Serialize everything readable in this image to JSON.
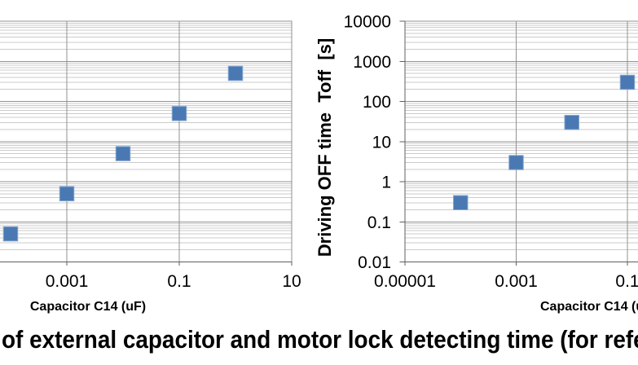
{
  "caption": {
    "text": "of external capacitor and motor lock detecting time (for refe"
  },
  "colors": {
    "background": "#ffffff",
    "marker_fill": "#4a78b2",
    "marker_edge": "#84a7d1",
    "grid_major": "#929292",
    "grid_minor": "#cbcbcb",
    "axis": "#5f5f5f",
    "text": "#000000"
  },
  "chart_data": [
    {
      "id": "left-chart",
      "type": "scatter",
      "title": "",
      "xlabel": "Capacitor C14 (uF)",
      "ylabel": "",
      "x_scale": "log",
      "y_scale": "log",
      "grid": true,
      "legend": false,
      "x_tick_labels": [
        "0.001",
        "0.1",
        "10"
      ],
      "y_tick_labels": [],
      "y_range": [
        0.01,
        10000
      ],
      "x": [
        0.0001,
        0.001,
        0.01,
        0.1,
        1
      ],
      "y": [
        0.05,
        0.5,
        5,
        50,
        500
      ]
    },
    {
      "id": "right-chart",
      "type": "scatter",
      "title": "",
      "xlabel": "Capacitor C14 (u",
      "ylabel": "Driving OFF time  Toff  [s]",
      "x_scale": "log",
      "y_scale": "log",
      "grid": true,
      "legend": false,
      "x_tick_labels": [
        "0.00001",
        "0.001",
        "0.1"
      ],
      "y_tick_labels": [
        "10000",
        "1000",
        "100",
        "10",
        "1",
        "0.1",
        "0.01"
      ],
      "y_range": [
        0.01,
        10000
      ],
      "x": [
        0.0001,
        0.001,
        0.01,
        0.1
      ],
      "y": [
        0.3,
        3,
        30,
        300
      ]
    }
  ]
}
